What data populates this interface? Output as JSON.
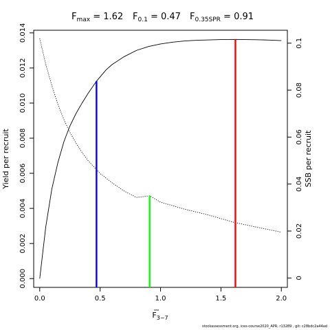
{
  "title": {
    "fmax": {
      "main": "F",
      "sub": "max",
      "value": " = 1.62"
    },
    "f01": {
      "main": "F",
      "sub": "0.1",
      "value": " = 0.47"
    },
    "f35": {
      "main": "F",
      "sub": "0.35SPR",
      "value": " = 0.91"
    }
  },
  "xlabel": {
    "main": "F",
    "sub": "3−7"
  },
  "ylabel_left": "Yield per recruit",
  "ylabel_right": "SSB per recruit",
  "footer": "stockassessment.org, ices-course2020_APR, r13289 , git: c28bdc2a44ad",
  "chart_data": {
    "type": "line",
    "xlim": [
      -0.05,
      2.05
    ],
    "ylim_left": [
      -0.0005,
      0.01415
    ],
    "ylim_right": [
      -0.004,
      0.1055
    ],
    "x_ticks": [
      0.0,
      0.5,
      1.0,
      1.5,
      2.0
    ],
    "x_tick_labels": [
      "0.0",
      "0.5",
      "1.0",
      "1.5",
      "2.0"
    ],
    "y_left_ticks": [
      0.0,
      0.002,
      0.004,
      0.006,
      0.008,
      0.01,
      0.012,
      0.014
    ],
    "y_left_tick_labels": [
      "0.000",
      "0.002",
      "0.004",
      "0.006",
      "0.008",
      "0.010",
      "0.012",
      "0.014"
    ],
    "y_right_ticks": [
      0.0,
      0.02,
      0.04,
      0.06,
      0.08,
      0.1
    ],
    "y_right_tick_labels": [
      "0",
      "0.02",
      "0.04",
      "0.06",
      "0.08",
      "0.1"
    ],
    "grid": false,
    "series": [
      {
        "name": "",
        "axis": "left",
        "style": "solid",
        "color": "#000000",
        "x": [
          0.0,
          0.05,
          0.1,
          0.15,
          0.2,
          0.25,
          0.3,
          0.35,
          0.4,
          0.47,
          0.55,
          0.6,
          0.7,
          0.8,
          0.9,
          1.0,
          1.1,
          1.2,
          1.3,
          1.4,
          1.5,
          1.62,
          1.7,
          1.8,
          1.9,
          2.0
        ],
        "y": [
          0.0,
          0.00295,
          0.0051,
          0.0066,
          0.0078,
          0.0087,
          0.0094,
          0.01,
          0.01055,
          0.01125,
          0.0119,
          0.0122,
          0.01265,
          0.013,
          0.01322,
          0.01337,
          0.01347,
          0.01354,
          0.01358,
          0.0136,
          0.01362,
          0.01363,
          0.01362,
          0.01361,
          0.01359,
          0.01356
        ]
      },
      {
        "name": "",
        "axis": "right",
        "style": "dotted",
        "color": "#000000",
        "x": [
          0.0,
          0.05,
          0.1,
          0.15,
          0.2,
          0.25,
          0.3,
          0.35,
          0.4,
          0.5,
          0.6,
          0.7,
          0.8,
          0.91,
          1.0,
          1.2,
          1.4,
          1.6,
          1.8,
          2.0
        ],
        "y": [
          0.102,
          0.091,
          0.082,
          0.074,
          0.0675,
          0.062,
          0.0575,
          0.0535,
          0.05,
          0.0445,
          0.0405,
          0.037,
          0.0343,
          0.035,
          0.0323,
          0.0293,
          0.0268,
          0.0238,
          0.0216,
          0.0195
        ]
      }
    ],
    "reference_lines": [
      {
        "label": "F0.1",
        "x": 0.47,
        "y_top": 0.01125,
        "axis": "left",
        "color": "#0000ff"
      },
      {
        "label": "F0.35SPR",
        "x": 0.91,
        "y_top": 0.035,
        "axis": "right",
        "color": "#00ff00"
      },
      {
        "label": "Fmax",
        "x": 1.62,
        "y_top": 0.01363,
        "axis": "left",
        "color": "#ff0000"
      }
    ]
  }
}
